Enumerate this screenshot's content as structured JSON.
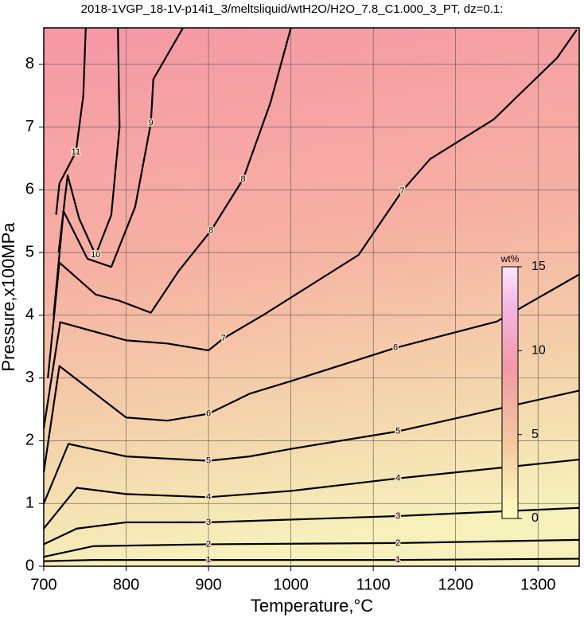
{
  "chart_data": {
    "type": "contour",
    "title": "2018-1VGP_18-1V-p14i1_3/meltsliquid/wtH2O/H2O_7.8_C1.000_3_PT, dz=0.1:",
    "xlabel": "Temperature,°C",
    "ylabel": "Pressure,x100MPa",
    "xlim": [
      700,
      1350
    ],
    "ylim": [
      0,
      8.58
    ],
    "xticks": [
      700,
      800,
      900,
      1000,
      1100,
      1200,
      1300
    ],
    "yticks": [
      0,
      1,
      2,
      3,
      4,
      5,
      6,
      7,
      8
    ],
    "grid": true,
    "contours": [
      {
        "level": 1,
        "x": [
          700,
          760,
          900,
          1130,
          1350
        ],
        "y": [
          0.08,
          0.1,
          0.1,
          0.1,
          0.12
        ]
      },
      {
        "level": 2,
        "x": [
          700,
          760,
          900,
          1130,
          1350
        ],
        "y": [
          0.15,
          0.32,
          0.35,
          0.37,
          0.42
        ]
      },
      {
        "level": 3,
        "x": [
          700,
          740,
          800,
          900,
          1130,
          1350
        ],
        "y": [
          0.35,
          0.6,
          0.7,
          0.7,
          0.8,
          0.93
        ]
      },
      {
        "level": 4,
        "x": [
          700,
          740,
          800,
          900,
          1000,
          1130,
          1350
        ],
        "y": [
          0.6,
          1.25,
          1.15,
          1.1,
          1.2,
          1.4,
          1.7
        ]
      },
      {
        "level": 5,
        "x": [
          700,
          730,
          800,
          900,
          950,
          1000,
          1130,
          1350
        ],
        "y": [
          1.0,
          1.95,
          1.75,
          1.68,
          1.75,
          1.87,
          2.15,
          2.8
        ]
      },
      {
        "level": 6,
        "x": [
          700,
          719,
          800,
          850,
          900,
          950,
          1000,
          1127,
          1250,
          1350
        ],
        "y": [
          1.5,
          3.19,
          2.37,
          2.32,
          2.43,
          2.75,
          2.95,
          3.48,
          3.9,
          4.65
        ]
      },
      {
        "level": 7,
        "x": [
          700,
          720,
          800,
          850,
          900,
          918,
          966,
          1082,
          1135,
          1169,
          1246,
          1323,
          1347
        ],
        "y": [
          2.2,
          3.89,
          3.6,
          3.55,
          3.44,
          3.63,
          4.0,
          4.96,
          5.98,
          6.49,
          7.12,
          8.1,
          8.55
        ]
      },
      {
        "level": 8,
        "x": [
          705,
          719,
          763,
          792,
          830,
          864,
          903,
          942,
          975,
          1000
        ],
        "y": [
          3.0,
          4.84,
          4.33,
          4.23,
          4.04,
          4.71,
          5.35,
          6.17,
          7.38,
          8.58
        ]
      },
      {
        "level": 9,
        "x": [
          712,
          724,
          753,
          782,
          811,
          830,
          833,
          869
        ],
        "y": [
          4.0,
          5.66,
          4.9,
          4.77,
          5.73,
          7.06,
          7.76,
          8.58
        ]
      },
      {
        "level": 10,
        "x": [
          718,
          729,
          743,
          763,
          782,
          792,
          790
        ],
        "y": [
          5.0,
          6.23,
          5.54,
          4.96,
          5.6,
          7.0,
          8.58
        ]
      },
      {
        "level": 11,
        "x": [
          715,
          719,
          739,
          748,
          751
        ],
        "y": [
          5.6,
          6.1,
          6.6,
          7.5,
          8.58
        ]
      }
    ],
    "colorbar": {
      "label": "wt%",
      "lim": [
        0,
        15
      ],
      "ticks": [
        0,
        5,
        10,
        15
      ]
    }
  }
}
